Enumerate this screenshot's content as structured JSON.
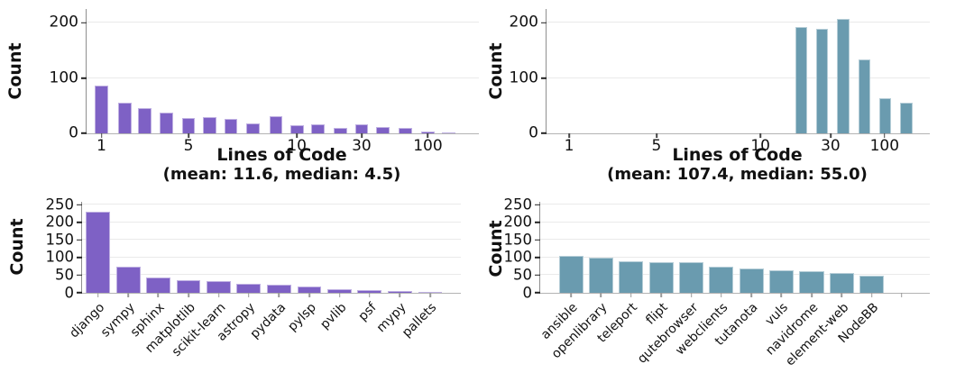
{
  "figure": {
    "background": "#ffffff",
    "accent_purple": "#7e61c5",
    "accent_teal": "#6a9baf"
  },
  "chart_data": [
    {
      "id": "loc-histogram-purple",
      "type": "bar",
      "variant": "histogram",
      "ylabel": "Count",
      "xlabel": "Lines of Code",
      "subtitle": "(mean: 11.6, median: 4.5)",
      "x_scale": "log",
      "grid": true,
      "legend": null,
      "color": "#7e61c5",
      "ylim": [
        0,
        225
      ],
      "y_ticks": [
        0,
        100,
        200
      ],
      "bar_width": 0.034,
      "x_ticks": [
        {
          "label": "1",
          "pos": 0.038
        },
        {
          "label": "5",
          "pos": 0.26
        },
        {
          "label": "10",
          "pos": 0.536
        },
        {
          "label": "30",
          "pos": 0.701
        },
        {
          "label": "100",
          "pos": 0.87
        }
      ],
      "bars": [
        {
          "pos": 0.038,
          "value": 87
        },
        {
          "pos": 0.097,
          "value": 56
        },
        {
          "pos": 0.149,
          "value": 45
        },
        {
          "pos": 0.203,
          "value": 37
        },
        {
          "pos": 0.26,
          "value": 28
        },
        {
          "pos": 0.314,
          "value": 29
        },
        {
          "pos": 0.368,
          "value": 26
        },
        {
          "pos": 0.425,
          "value": 18
        },
        {
          "pos": 0.483,
          "value": 31
        },
        {
          "pos": 0.536,
          "value": 15
        },
        {
          "pos": 0.59,
          "value": 16
        },
        {
          "pos": 0.648,
          "value": 9
        },
        {
          "pos": 0.701,
          "value": 16
        },
        {
          "pos": 0.755,
          "value": 12
        },
        {
          "pos": 0.812,
          "value": 10
        },
        {
          "pos": 0.87,
          "value": 4
        },
        {
          "pos": 0.923,
          "value": 2
        }
      ]
    },
    {
      "id": "loc-histogram-teal",
      "type": "bar",
      "variant": "histogram",
      "ylabel": "Count",
      "xlabel": "Lines of Code",
      "subtitle": "(mean: 107.4, median: 55.0)",
      "x_scale": "log",
      "grid": true,
      "legend": null,
      "color": "#6a9baf",
      "ylim": [
        0,
        225
      ],
      "y_ticks": [
        0,
        100,
        200
      ],
      "bar_width": 0.031,
      "x_ticks": [
        {
          "label": "1",
          "pos": 0.059
        },
        {
          "label": "5",
          "pos": 0.287
        },
        {
          "label": "10",
          "pos": 0.558
        },
        {
          "label": "30",
          "pos": 0.741
        },
        {
          "label": "100",
          "pos": 0.882
        }
      ],
      "bars": [
        {
          "pos": 0.664,
          "value": 193
        },
        {
          "pos": 0.719,
          "value": 189
        },
        {
          "pos": 0.774,
          "value": 207
        },
        {
          "pos": 0.829,
          "value": 133
        },
        {
          "pos": 0.884,
          "value": 63
        },
        {
          "pos": 0.939,
          "value": 56
        }
      ]
    },
    {
      "id": "repo-counts-purple",
      "type": "bar",
      "variant": "categorical",
      "categorical": true,
      "ylabel": "Count",
      "xlabel": "",
      "grid": true,
      "legend": null,
      "color": "#7e61c5",
      "ylim": [
        0,
        258
      ],
      "y_ticks": [
        0,
        50,
        100,
        150,
        200,
        250
      ],
      "bar_width": 0.064,
      "label_rotation": 45,
      "bars": [
        {
          "label": "django",
          "pos": 0.042,
          "value": 229
        },
        {
          "label": "sympy",
          "pos": 0.122,
          "value": 74
        },
        {
          "label": "sphinx",
          "pos": 0.201,
          "value": 44
        },
        {
          "label": "matplotlib",
          "pos": 0.281,
          "value": 35
        },
        {
          "label": "scikit-learn",
          "pos": 0.361,
          "value": 34
        },
        {
          "label": "astropy",
          "pos": 0.44,
          "value": 25
        },
        {
          "label": "pydata",
          "pos": 0.52,
          "value": 24
        },
        {
          "label": "pylsp",
          "pos": 0.6,
          "value": 19
        },
        {
          "label": "pvlib",
          "pos": 0.68,
          "value": 9
        },
        {
          "label": "psf",
          "pos": 0.759,
          "value": 7
        },
        {
          "label": "mypy",
          "pos": 0.839,
          "value": 5
        },
        {
          "label": "pallets",
          "pos": 0.919,
          "value": 2
        }
      ]
    },
    {
      "id": "repo-counts-teal",
      "type": "bar",
      "variant": "categorical",
      "categorical": true,
      "ylabel": "Count",
      "xlabel": "",
      "grid": true,
      "legend": null,
      "color": "#6a9baf",
      "ylim": [
        0,
        258
      ],
      "y_ticks": [
        0,
        50,
        100,
        150,
        200,
        250
      ],
      "bar_width": 0.063,
      "label_rotation": 45,
      "extra_ticks": [
        0.928
      ],
      "bars": [
        {
          "label": "ansible",
          "pos": 0.079,
          "value": 106
        },
        {
          "label": "openlibrary",
          "pos": 0.156,
          "value": 100
        },
        {
          "label": "teleport",
          "pos": 0.233,
          "value": 89
        },
        {
          "label": "flipt",
          "pos": 0.311,
          "value": 87
        },
        {
          "label": "qutebrowser",
          "pos": 0.388,
          "value": 86
        },
        {
          "label": "webclients",
          "pos": 0.465,
          "value": 73
        },
        {
          "label": "tutanota",
          "pos": 0.542,
          "value": 69
        },
        {
          "label": "vuls",
          "pos": 0.619,
          "value": 63
        },
        {
          "label": "navidrome",
          "pos": 0.697,
          "value": 61
        },
        {
          "label": "element-web",
          "pos": 0.774,
          "value": 55
        },
        {
          "label": "NodeBB",
          "pos": 0.851,
          "value": 48
        }
      ]
    }
  ]
}
